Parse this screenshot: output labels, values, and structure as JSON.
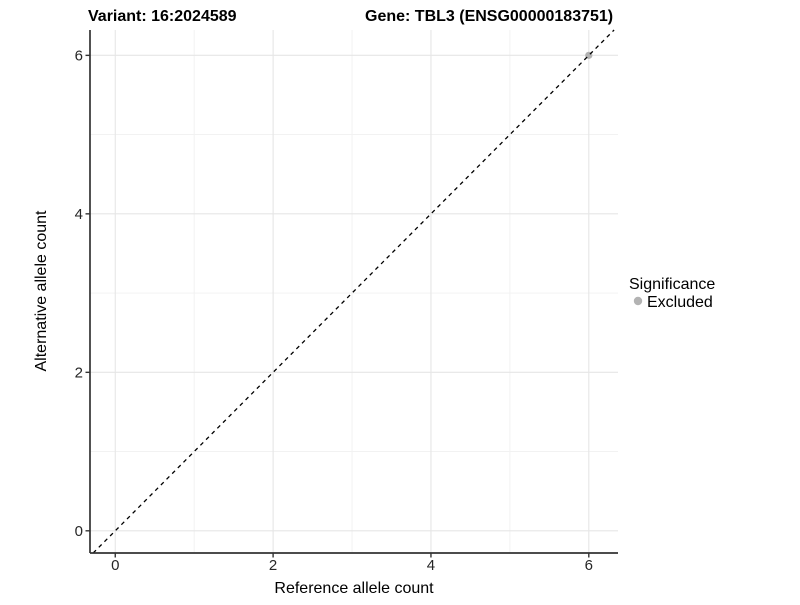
{
  "chart_data": {
    "type": "scatter",
    "title_left": "Variant: 16:2024589",
    "title_right": "Gene: TBL3 (ENSG00000183751)",
    "xlabel": "Reference allele count",
    "ylabel": "Alternative allele count",
    "xlim": [
      -0.32,
      6.37
    ],
    "ylim": [
      -0.28,
      6.32
    ],
    "x_ticks": [
      0,
      2,
      4,
      6
    ],
    "y_ticks": [
      0,
      2,
      4,
      6
    ],
    "x_minor_breaks": [
      1,
      3,
      5
    ],
    "y_minor_breaks": [
      1,
      3,
      5
    ],
    "grid": true,
    "reference_line": {
      "type": "identity",
      "slope": 1,
      "intercept": 0,
      "style": "dashed",
      "color": "#000000"
    },
    "series": [
      {
        "name": "Excluded",
        "color": "#b3b3b3",
        "points": [
          [
            6,
            6
          ]
        ]
      }
    ],
    "legend": {
      "title": "Significance",
      "position": "right",
      "entries": [
        {
          "label": "Excluded",
          "color": "#b3b3b3"
        }
      ]
    },
    "style": {
      "background": "#ffffff",
      "grid_major_color": "#e6e6e6",
      "grid_minor_color": "#f1f1f1",
      "axis_color": "#333333",
      "tick_color": "#333333"
    }
  }
}
